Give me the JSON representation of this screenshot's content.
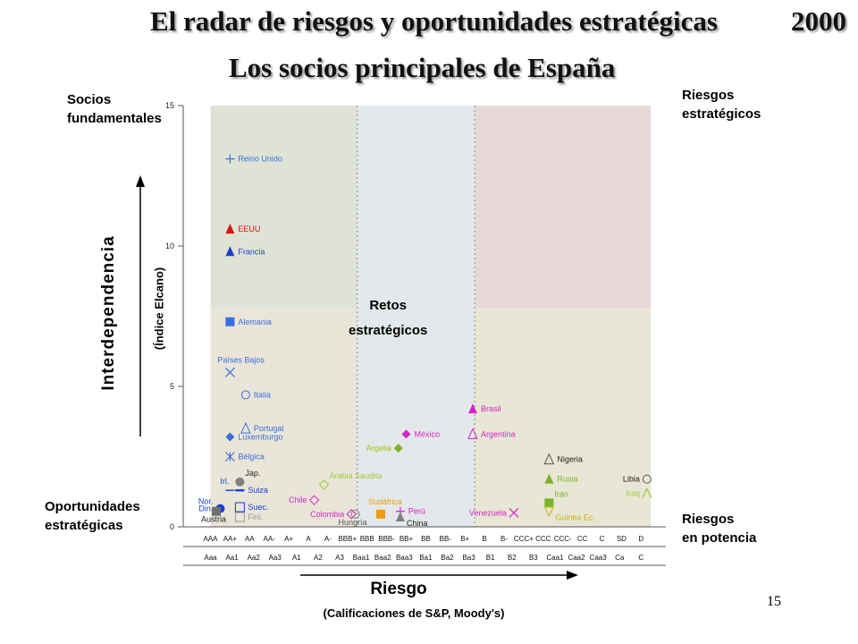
{
  "header": {
    "title": "El radar de riesgos y oportunidades estratégicas",
    "year": "2000",
    "subtitle": "Los socios principales de España"
  },
  "quadrants": {
    "top_left": "Socios\nfundamentales",
    "top_right": "Riesgos\nestratégicos",
    "bottom_left": "Oportunidades\nestratégicas",
    "bottom_right": "Riesgos\nen potencia",
    "middle": "Retos\nestratégicos"
  },
  "page_number": "15",
  "colors": {
    "fundamentales": "#dfe3d6",
    "oportunidades": "#e9e5d9",
    "retos": "#e4e8ea",
    "estrategicos": "#e7d9d7",
    "potencia": "#e8e6d4"
  },
  "chart_data": {
    "type": "scatter",
    "title": "Los socios principales de España",
    "ylabel": "Interdependencia",
    "ylabel_sub": "(Índice Elcano)",
    "xlabel": "Riesgo",
    "xlabel_sub": "(Calificaciones de S&P, Moody's)",
    "ylim": [
      0,
      15
    ],
    "yticks": [
      "0",
      "5",
      "10",
      "15"
    ],
    "x_categories_sp": [
      "AAA",
      "AA+",
      "AA",
      "AA-",
      "A+",
      "A",
      "A-",
      "BBB+",
      "BBB",
      "BBB-",
      "BB+",
      "BB",
      "BB-",
      "B+",
      "B",
      "B-",
      "CCC+",
      "CCC",
      "CCC-",
      "CC",
      "C",
      "SD",
      "D"
    ],
    "x_categories_moodys": [
      "Aaa",
      "Aa1",
      "Aa2",
      "Aa3",
      "A1",
      "A2",
      "A3",
      "Baa1",
      "Baa2",
      "Baa3",
      "Ba1",
      "Ba2",
      "Ba3",
      "B1",
      "B2",
      "B3",
      "Caa1",
      "Caa2",
      "Caa3",
      "Ca",
      "C"
    ],
    "zones": [
      {
        "name": "fundamentales",
        "x": [
          0,
          7.5
        ],
        "y": [
          7.8,
          15
        ]
      },
      {
        "name": "oportunidades",
        "x": [
          0,
          7.5
        ],
        "y": [
          0,
          7.8
        ]
      },
      {
        "name": "retos",
        "x": [
          7.5,
          13.5
        ],
        "y": [
          0,
          15
        ]
      },
      {
        "name": "estrategicos",
        "x": [
          13.5,
          22.5
        ],
        "y": [
          7.8,
          15
        ]
      },
      {
        "name": "potencia",
        "x": [
          13.5,
          22.5
        ],
        "y": [
          0,
          7.8
        ]
      }
    ],
    "points": [
      {
        "label": "Reino Unido",
        "x": 1,
        "y": 13.1,
        "marker": "plus",
        "color": "#3a6fd8"
      },
      {
        "label": "EEUU",
        "x": 1,
        "y": 10.6,
        "marker": "tri",
        "color": "#e01010",
        "label_color": "#e01010"
      },
      {
        "label": "Francia",
        "x": 1,
        "y": 9.8,
        "marker": "tri",
        "color": "#1a3fd0"
      },
      {
        "label": "Alemania",
        "x": 1,
        "y": 7.3,
        "marker": "square",
        "color": "#3a6fe0"
      },
      {
        "label": "Países Bajos",
        "x": 1,
        "y": 5.5,
        "marker": "x",
        "color": "#3a6fd8",
        "label_pos": "above"
      },
      {
        "label": "Italia",
        "x": 1.8,
        "y": 4.7,
        "marker": "circle-open",
        "color": "#3a6fd8"
      },
      {
        "label": "Portugal",
        "x": 1.8,
        "y": 3.5,
        "marker": "tri-open",
        "color": "#3a6fd8"
      },
      {
        "label": "Luxemburgo",
        "x": 1,
        "y": 3.2,
        "marker": "diamond",
        "color": "#3a6fd8"
      },
      {
        "label": "Bélgica",
        "x": 1,
        "y": 2.5,
        "marker": "asterisk",
        "color": "#3a6fd8"
      },
      {
        "label": "Jap.",
        "x": 1.5,
        "y": 1.6,
        "marker": "circle",
        "color": "#808080",
        "label_color": "#222222",
        "label_pos": "upper-right"
      },
      {
        "label": "Irl.",
        "x": 1,
        "y": 1.3,
        "marker": "dash",
        "color": "#1a3fd0",
        "label_pos": "upper-left"
      },
      {
        "label": "Suiza",
        "x": 1.5,
        "y": 1.3,
        "marker": "dash-thick",
        "color": "#1a3fd0"
      },
      {
        "label": "Nor.",
        "x": 0.5,
        "y": 0.9,
        "marker": "none",
        "color": "#1a3fd0",
        "label_pos": "left"
      },
      {
        "label": "Din.",
        "x": 0.5,
        "y": 0.65,
        "marker": "circle",
        "color": "#1a3fd0",
        "label_color": "#1a3fd0",
        "label_pos": "left"
      },
      {
        "label": "Austria",
        "x": 0.3,
        "y": 0.55,
        "marker": "square",
        "color": "#707070",
        "label_color": "#222222",
        "label_pos": "below"
      },
      {
        "label": "Suec.",
        "x": 1.5,
        "y": 0.7,
        "marker": "square-open",
        "color": "#1a3fd0"
      },
      {
        "label": "Finl.",
        "x": 1.5,
        "y": 0.35,
        "marker": "square-open",
        "color": "#9a9a9a",
        "label_color": "#9a9a9a"
      },
      {
        "label": "Arabia Saudita",
        "x": 5.8,
        "y": 1.5,
        "marker": "diamond-open",
        "color": "#a6c83c",
        "label_pos": "upper-right"
      },
      {
        "label": "Chile",
        "x": 5.3,
        "y": 0.95,
        "marker": "diamond-open",
        "color": "#d425c8",
        "label_pos": "left"
      },
      {
        "label": "Colombia",
        "x": 7.2,
        "y": 0.45,
        "marker": "diamond-open",
        "color": "#d425c8",
        "label_pos": "left"
      },
      {
        "label": "Hungría",
        "x": 7.4,
        "y": 0.45,
        "marker": "circle-open",
        "color": "#808080",
        "label_color": "#555555",
        "label_pos": "below"
      },
      {
        "label": "Sudáfrica",
        "x": 8.7,
        "y": 0.45,
        "marker": "square",
        "color": "#f09a14",
        "label_color": "#e6a00f",
        "label_pos": "above"
      },
      {
        "label": "Perú",
        "x": 9.7,
        "y": 0.55,
        "marker": "plus",
        "color": "#d425c8"
      },
      {
        "label": "China",
        "x": 9.7,
        "y": 0.35,
        "marker": "tri",
        "color": "#808080",
        "label_color": "#222222",
        "label_pos": "below-right"
      },
      {
        "label": "México",
        "x": 10,
        "y": 3.3,
        "marker": "diamond",
        "color": "#d425c8"
      },
      {
        "label": "Argelia",
        "x": 9.6,
        "y": 2.8,
        "marker": "diamond",
        "color": "#7ab32a",
        "label_color": "#9cc41c",
        "label_pos": "left"
      },
      {
        "label": "Brasil",
        "x": 13.4,
        "y": 4.2,
        "marker": "tri",
        "color": "#d425c8"
      },
      {
        "label": "Argentina",
        "x": 13.4,
        "y": 3.3,
        "marker": "tri-open",
        "color": "#d425c8"
      },
      {
        "label": "Venezuela",
        "x": 15.5,
        "y": 0.5,
        "marker": "x",
        "color": "#d425c8",
        "label_pos": "left"
      },
      {
        "label": "Nigeria",
        "x": 17.3,
        "y": 2.4,
        "marker": "tri-open",
        "color": "#555555",
        "label_color": "#222222"
      },
      {
        "label": "Rusia",
        "x": 17.3,
        "y": 1.7,
        "marker": "tri",
        "color": "#7ab32a",
        "label_color": "#7ab32a"
      },
      {
        "label": "Irán",
        "x": 17.3,
        "y": 0.85,
        "marker": "square",
        "color": "#7ab32a",
        "label_color": "#7ab32a",
        "label_pos": "upper-right"
      },
      {
        "label": "Guinea Ec.",
        "x": 17.3,
        "y": 0.55,
        "marker": "tri-down-open",
        "color": "#c8b412",
        "label_color": "#c8b412",
        "label_pos": "below-right"
      },
      {
        "label": "Libia",
        "x": 22.3,
        "y": 1.7,
        "marker": "circle-open",
        "color": "#555555",
        "label_color": "#222222",
        "label_pos": "left"
      },
      {
        "label": "Iraq",
        "x": 22.3,
        "y": 1.2,
        "marker": "caret-open",
        "color": "#a6c83c",
        "label_color": "#a6c83c",
        "label_pos": "left"
      }
    ]
  }
}
